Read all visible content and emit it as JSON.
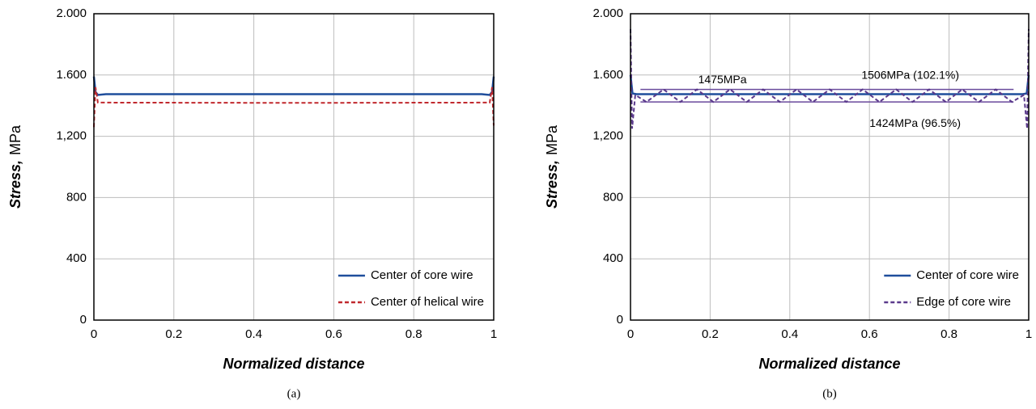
{
  "chart_data": [
    {
      "type": "line",
      "caption": "(a)",
      "ylabel": {
        "emph": "Stress,",
        "text": "MPa"
      },
      "xlabel": "Normalized distance",
      "xlim": [
        0,
        1
      ],
      "xticks": [
        0,
        0.2,
        0.4,
        0.6,
        0.8,
        1
      ],
      "ylim": [
        0,
        2000
      ],
      "yticks": [
        0,
        400,
        800,
        {
          "value": 1200,
          "label": "1,200"
        },
        {
          "value": 1600,
          "label": "1.600"
        },
        {
          "value": 2000,
          "label": "2.000"
        }
      ],
      "grid": true,
      "legend": "lower right",
      "series": [
        {
          "name": "Center of core wire",
          "color": "#1f4e9c",
          "dashed": false,
          "x": [
            0,
            0.004,
            0.01,
            0.03,
            0.5,
            0.97,
            0.99,
            0.996,
            1
          ],
          "values": [
            1590,
            1490,
            1470,
            1475,
            1475,
            1475,
            1470,
            1490,
            1590
          ]
        },
        {
          "name": "Center of helical wire",
          "color": "#c0282d",
          "dashed": true,
          "x": [
            0,
            0.004,
            0.01,
            0.5,
            0.99,
            0.996,
            1
          ],
          "values": [
            1260,
            1520,
            1420,
            1418,
            1420,
            1520,
            1270
          ]
        }
      ]
    },
    {
      "type": "line",
      "caption": "(b)",
      "ylabel": {
        "emph": "Stress,",
        "text": "MPa"
      },
      "xlabel": "Normalized distance",
      "xlim": [
        0,
        1
      ],
      "xticks": [
        0,
        0.2,
        0.4,
        0.6,
        0.8,
        1
      ],
      "ylim": [
        0,
        2000
      ],
      "yticks": [
        0,
        400,
        800,
        {
          "value": 1200,
          "label": "1,200"
        },
        {
          "value": 1600,
          "label": "1.600"
        },
        {
          "value": 2000,
          "label": "2.000"
        }
      ],
      "grid": true,
      "legend": "lower right",
      "reference_lines": [
        {
          "value": 1475,
          "label": "1475MPa"
        },
        {
          "value": 1506,
          "label": "1506MPa (102.1%)"
        },
        {
          "value": 1424,
          "label": "1424MPa (96.5%)"
        }
      ],
      "reference_color": "#6a4a9c",
      "series": [
        {
          "name": "Center of core wire",
          "color": "#1f4e9c",
          "dashed": false,
          "x": [
            0,
            0.005,
            0.015,
            0.5,
            0.985,
            0.995,
            1
          ],
          "values": [
            1600,
            1480,
            1475,
            1475,
            1475,
            1480,
            1600
          ]
        },
        {
          "name": "Edge of core wire",
          "color": "#5b3a8c",
          "dashed": true,
          "x": [
            0,
            0.004,
            0.012,
            0.04,
            0.083,
            0.125,
            0.167,
            0.208,
            0.25,
            0.292,
            0.333,
            0.375,
            0.417,
            0.458,
            0.5,
            0.542,
            0.583,
            0.625,
            0.667,
            0.708,
            0.75,
            0.792,
            0.833,
            0.875,
            0.917,
            0.958,
            0.988,
            0.996,
            1
          ],
          "values": [
            1900,
            1250,
            1470,
            1424,
            1506,
            1424,
            1506,
            1424,
            1506,
            1424,
            1506,
            1424,
            1506,
            1424,
            1506,
            1424,
            1506,
            1424,
            1506,
            1424,
            1506,
            1424,
            1506,
            1424,
            1506,
            1424,
            1470,
            1250,
            1900
          ]
        }
      ]
    }
  ]
}
